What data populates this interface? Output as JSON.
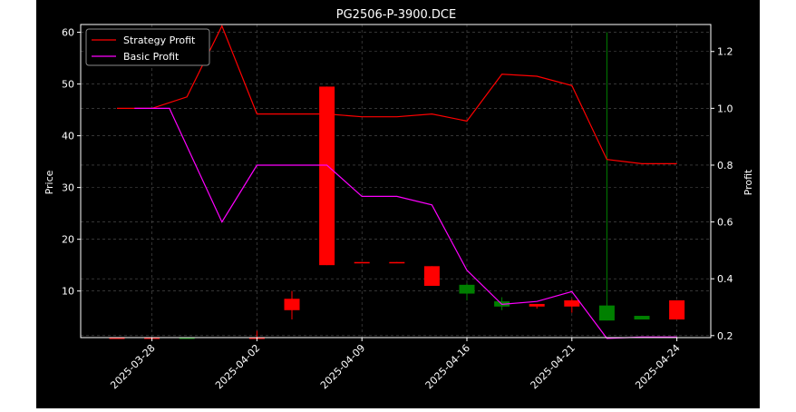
{
  "chart_data": {
    "type": "candlestick+line",
    "title": "PG2506-P-3900.DCE",
    "ylabel_left": "Price",
    "ylabel_right": "Profit",
    "xlabel": "",
    "ylim_left": [
      1,
      61.5
    ],
    "ylim_right": [
      0.193,
      1.295
    ],
    "left_ticks": [
      10,
      20,
      30,
      40,
      50,
      60
    ],
    "right_ticks": [
      "0.2",
      "0.4",
      "0.6",
      "0.8",
      "1.0",
      "1.2"
    ],
    "x_tick_labels": [
      "2025-03-28",
      "2025-04-02",
      "2025-04-09",
      "2025-04-16",
      "2025-04-21",
      "2025-04-24"
    ],
    "x_tick_index": [
      1,
      4,
      7,
      10,
      13,
      16
    ],
    "grid": true,
    "legend_position": "top-left",
    "candles": [
      {
        "open": 1.0,
        "close": 0.8,
        "high": 1.0,
        "low": 0.8
      },
      {
        "open": 1.0,
        "close": 0.8,
        "high": 1.0,
        "low": 0.8
      },
      {
        "open": 0.8,
        "close": 1.0,
        "high": 1.0,
        "low": 0.8
      },
      null,
      {
        "open": 1.0,
        "close": 0.8,
        "high": 2.3,
        "low": 0.8
      },
      {
        "open": 8.5,
        "close": 6.3,
        "high": 10.0,
        "low": 4.5
      },
      {
        "open": 49.5,
        "close": 15.0,
        "high": 49.5,
        "low": 15.0
      },
      {
        "open": 15.6,
        "close": 15.4,
        "high": 15.6,
        "low": 15.4
      },
      {
        "open": 15.6,
        "close": 15.4,
        "high": 15.6,
        "low": 15.4
      },
      {
        "open": 14.8,
        "close": 11.0,
        "high": 14.8,
        "low": 11.0
      },
      {
        "open": 9.5,
        "close": 11.2,
        "high": 11.5,
        "low": 8.2
      },
      {
        "open": 7.0,
        "close": 8.0,
        "high": 8.8,
        "low": 6.3
      },
      {
        "open": 7.5,
        "close": 7.0,
        "high": 7.5,
        "low": 6.6
      },
      {
        "open": 8.2,
        "close": 7.0,
        "high": 8.5,
        "low": 5.8
      },
      {
        "open": 4.3,
        "close": 7.2,
        "high": 60.0,
        "low": 4.3
      },
      {
        "open": 4.5,
        "close": 5.2,
        "high": 5.2,
        "low": 4.5
      },
      {
        "open": 8.2,
        "close": 4.5,
        "high": 8.2,
        "low": 4.5
      }
    ],
    "series": [
      {
        "name": "Strategy Profit",
        "color": "#ff0000",
        "x_index": [
          0,
          1,
          2,
          3,
          4,
          5,
          6,
          7,
          8,
          9,
          10,
          11,
          12,
          13,
          14,
          15,
          16
        ],
        "values": [
          1.0,
          1.0,
          1.04,
          1.29,
          0.98,
          0.98,
          0.98,
          0.97,
          0.97,
          0.98,
          0.955,
          1.12,
          1.113,
          1.08,
          0.82,
          0.805,
          0.805
        ]
      },
      {
        "name": "Basic Profit",
        "color": "#ff00ff",
        "x_index": [
          0.5,
          1.5,
          3,
          4,
          5,
          6,
          7,
          8,
          9,
          10,
          11,
          12,
          13,
          14,
          15,
          16
        ],
        "values": [
          1.0,
          1.0,
          0.6,
          0.8,
          0.8,
          0.8,
          0.69,
          0.69,
          0.66,
          0.43,
          0.31,
          0.32,
          0.355,
          0.19,
          0.195,
          0.195
        ]
      }
    ],
    "candle_colors": {
      "up": "#008000",
      "down": "#ff0000"
    }
  }
}
